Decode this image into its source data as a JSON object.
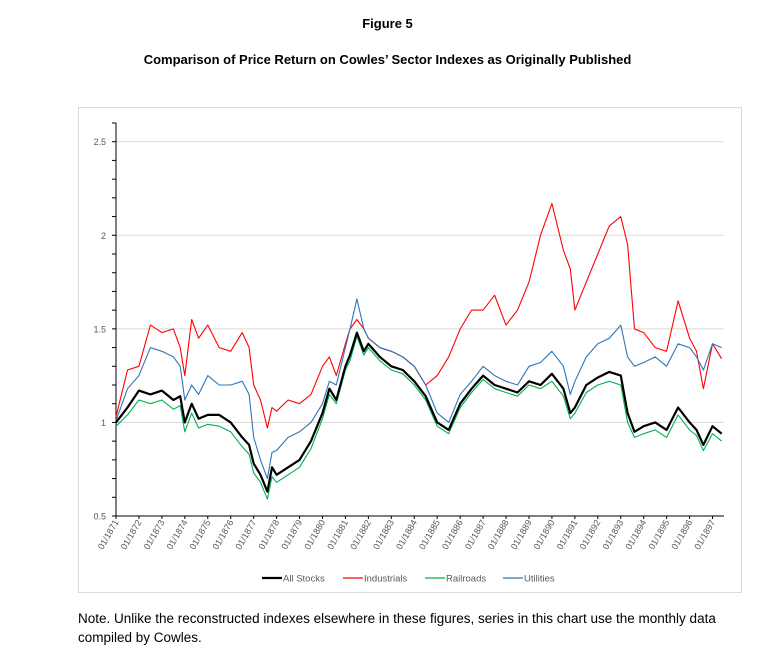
{
  "figure_label": "Figure 5",
  "title": "Comparison of Price Return on Cowles’ Sector Indexes as Originally Published",
  "note": "Note.  Unlike the reconstructed indexes elsewhere in these figures, series in this chart use the monthly data compiled by Cowles.",
  "chart_data": {
    "type": "line",
    "title": "Comparison of Price Return on Cowles’ Sector Indexes as Originally Published",
    "xlabel": "",
    "ylabel": "",
    "ylim": [
      0.5,
      2.6
    ],
    "yticks": [
      0.5,
      1,
      1.5,
      2,
      2.5
    ],
    "ytick_labels": [
      "0.5",
      "1",
      "1.5",
      "2",
      "2.5"
    ],
    "xlim": [
      1871,
      1897.5
    ],
    "xticks": [
      1871,
      1872,
      1873,
      1874,
      1875,
      1876,
      1877,
      1878,
      1879,
      1880,
      1881,
      1882,
      1883,
      1884,
      1885,
      1886,
      1887,
      1888,
      1889,
      1890,
      1891,
      1892,
      1893,
      1894,
      1895,
      1896,
      1897
    ],
    "xtick_labels": [
      "01/1871",
      "01/1872",
      "01/1873",
      "01/1874",
      "01/1875",
      "01/1876",
      "01/1877",
      "01/1878",
      "01/1879",
      "01/1880",
      "01/1881",
      "01/1882",
      "01/1883",
      "01/1884",
      "01/1885",
      "01/1886",
      "01/1887",
      "01/1888",
      "01/1889",
      "01/1890",
      "01/1891",
      "01/1892",
      "01/1893",
      "01/1894",
      "01/1895",
      "01/1896",
      "01/1897"
    ],
    "grid": true,
    "legend_position": "bottom",
    "series": [
      {
        "name": "All Stocks",
        "color": "#000000",
        "width": 2.2,
        "x": [
          1871,
          1871.5,
          1872,
          1872.5,
          1873,
          1873.5,
          1873.8,
          1874,
          1874.3,
          1874.6,
          1875,
          1875.5,
          1876,
          1876.5,
          1876.8,
          1877,
          1877.3,
          1877.6,
          1877.8,
          1878,
          1878.5,
          1879,
          1879.5,
          1880,
          1880.3,
          1880.6,
          1881,
          1881.2,
          1881.5,
          1881.8,
          1882,
          1882.5,
          1883,
          1883.5,
          1884,
          1884.5,
          1885,
          1885.5,
          1886,
          1886.5,
          1887,
          1887.5,
          1888,
          1888.5,
          1889,
          1889.5,
          1890,
          1890.5,
          1890.8,
          1891,
          1891.5,
          1892,
          1892.5,
          1893,
          1893.3,
          1893.6,
          1894,
          1894.5,
          1895,
          1895.5,
          1896,
          1896.3,
          1896.6,
          1897,
          1897.4
        ],
        "y": [
          1.0,
          1.08,
          1.17,
          1.15,
          1.17,
          1.12,
          1.14,
          1.0,
          1.1,
          1.02,
          1.04,
          1.04,
          1.0,
          0.92,
          0.88,
          0.78,
          0.72,
          0.63,
          0.76,
          0.72,
          0.76,
          0.8,
          0.9,
          1.05,
          1.18,
          1.12,
          1.3,
          1.36,
          1.48,
          1.38,
          1.42,
          1.35,
          1.3,
          1.28,
          1.22,
          1.14,
          1.0,
          0.96,
          1.1,
          1.18,
          1.25,
          1.2,
          1.18,
          1.16,
          1.22,
          1.2,
          1.26,
          1.18,
          1.05,
          1.08,
          1.2,
          1.24,
          1.27,
          1.25,
          1.05,
          0.95,
          0.98,
          1.0,
          0.96,
          1.08,
          1.0,
          0.96,
          0.88,
          0.98,
          0.94
        ]
      },
      {
        "name": "Industrials",
        "color": "#ff0000",
        "width": 1.1,
        "x": [
          1871,
          1871.5,
          1872,
          1872.5,
          1873,
          1873.5,
          1873.8,
          1874,
          1874.3,
          1874.6,
          1875,
          1875.5,
          1876,
          1876.5,
          1876.8,
          1877,
          1877.3,
          1877.6,
          1877.8,
          1878,
          1878.5,
          1879,
          1879.5,
          1880,
          1880.3,
          1880.6,
          1881,
          1881.2,
          1881.5,
          1881.8,
          1882,
          1882.5,
          1883,
          1883.5,
          1884,
          1884.5,
          1885,
          1885.5,
          1886,
          1886.5,
          1887,
          1887.5,
          1888,
          1888.5,
          1889,
          1889.5,
          1890,
          1890.5,
          1890.8,
          1891,
          1891.5,
          1892,
          1892.5,
          1893,
          1893.3,
          1893.6,
          1894,
          1894.5,
          1895,
          1895.5,
          1896,
          1896.3,
          1896.6,
          1897,
          1897.4
        ],
        "y": [
          1.03,
          1.28,
          1.3,
          1.52,
          1.48,
          1.5,
          1.4,
          1.25,
          1.55,
          1.45,
          1.52,
          1.4,
          1.38,
          1.48,
          1.4,
          1.2,
          1.12,
          0.97,
          1.08,
          1.06,
          1.12,
          1.1,
          1.15,
          1.3,
          1.35,
          1.25,
          1.42,
          1.5,
          1.55,
          1.5,
          1.45,
          1.4,
          1.38,
          1.35,
          1.3,
          1.2,
          1.25,
          1.35,
          1.5,
          1.6,
          1.6,
          1.68,
          1.52,
          1.6,
          1.75,
          2.0,
          2.17,
          1.92,
          1.82,
          1.6,
          1.75,
          1.9,
          2.05,
          2.1,
          1.95,
          1.5,
          1.48,
          1.4,
          1.38,
          1.65,
          1.45,
          1.38,
          1.18,
          1.42,
          1.34
        ]
      },
      {
        "name": "Railroads",
        "color": "#00b050",
        "width": 1.1,
        "x": [
          1871,
          1871.5,
          1872,
          1872.5,
          1873,
          1873.5,
          1873.8,
          1874,
          1874.3,
          1874.6,
          1875,
          1875.5,
          1876,
          1876.5,
          1876.8,
          1877,
          1877.3,
          1877.6,
          1877.8,
          1878,
          1878.5,
          1879,
          1879.5,
          1880,
          1880.3,
          1880.6,
          1881,
          1881.2,
          1881.5,
          1881.8,
          1882,
          1882.5,
          1883,
          1883.5,
          1884,
          1884.5,
          1885,
          1885.5,
          1886,
          1886.5,
          1887,
          1887.5,
          1888,
          1888.5,
          1889,
          1889.5,
          1890,
          1890.5,
          1890.8,
          1891,
          1891.5,
          1892,
          1892.5,
          1893,
          1893.3,
          1893.6,
          1894,
          1894.5,
          1895,
          1895.5,
          1896,
          1896.3,
          1896.6,
          1897,
          1897.4
        ],
        "y": [
          0.98,
          1.04,
          1.12,
          1.1,
          1.12,
          1.07,
          1.09,
          0.95,
          1.05,
          0.97,
          0.99,
          0.98,
          0.95,
          0.87,
          0.83,
          0.73,
          0.68,
          0.59,
          0.71,
          0.68,
          0.72,
          0.76,
          0.86,
          1.02,
          1.15,
          1.1,
          1.28,
          1.33,
          1.46,
          1.36,
          1.4,
          1.33,
          1.28,
          1.26,
          1.2,
          1.12,
          0.98,
          0.94,
          1.08,
          1.16,
          1.23,
          1.18,
          1.16,
          1.14,
          1.2,
          1.18,
          1.22,
          1.14,
          1.02,
          1.05,
          1.16,
          1.2,
          1.22,
          1.2,
          1.0,
          0.92,
          0.94,
          0.96,
          0.92,
          1.04,
          0.96,
          0.93,
          0.85,
          0.94,
          0.9
        ]
      },
      {
        "name": "Utilities",
        "color": "#2e75b6",
        "width": 1.1,
        "x": [
          1871,
          1871.5,
          1872,
          1872.5,
          1873,
          1873.5,
          1873.8,
          1874,
          1874.3,
          1874.6,
          1875,
          1875.5,
          1876,
          1876.5,
          1876.8,
          1877,
          1877.3,
          1877.6,
          1877.8,
          1878,
          1878.5,
          1879,
          1879.5,
          1880,
          1880.3,
          1880.6,
          1881,
          1881.2,
          1881.5,
          1881.8,
          1882,
          1882.5,
          1883,
          1883.5,
          1884,
          1884.5,
          1885,
          1885.5,
          1886,
          1886.5,
          1887,
          1887.5,
          1888,
          1888.5,
          1889,
          1889.5,
          1890,
          1890.5,
          1890.8,
          1891,
          1891.5,
          1892,
          1892.5,
          1893,
          1893.3,
          1893.6,
          1894,
          1894.5,
          1895,
          1895.5,
          1896,
          1896.3,
          1896.6,
          1897,
          1897.4
        ],
        "y": [
          1.01,
          1.18,
          1.25,
          1.4,
          1.38,
          1.35,
          1.3,
          1.12,
          1.2,
          1.15,
          1.25,
          1.2,
          1.2,
          1.22,
          1.15,
          0.92,
          0.8,
          0.7,
          0.84,
          0.85,
          0.92,
          0.95,
          1.0,
          1.1,
          1.22,
          1.2,
          1.4,
          1.5,
          1.66,
          1.5,
          1.45,
          1.4,
          1.38,
          1.35,
          1.3,
          1.2,
          1.05,
          1.0,
          1.15,
          1.22,
          1.3,
          1.25,
          1.22,
          1.2,
          1.3,
          1.32,
          1.38,
          1.3,
          1.15,
          1.22,
          1.35,
          1.42,
          1.45,
          1.52,
          1.35,
          1.3,
          1.32,
          1.35,
          1.3,
          1.42,
          1.4,
          1.35,
          1.28,
          1.42,
          1.4
        ]
      }
    ]
  }
}
